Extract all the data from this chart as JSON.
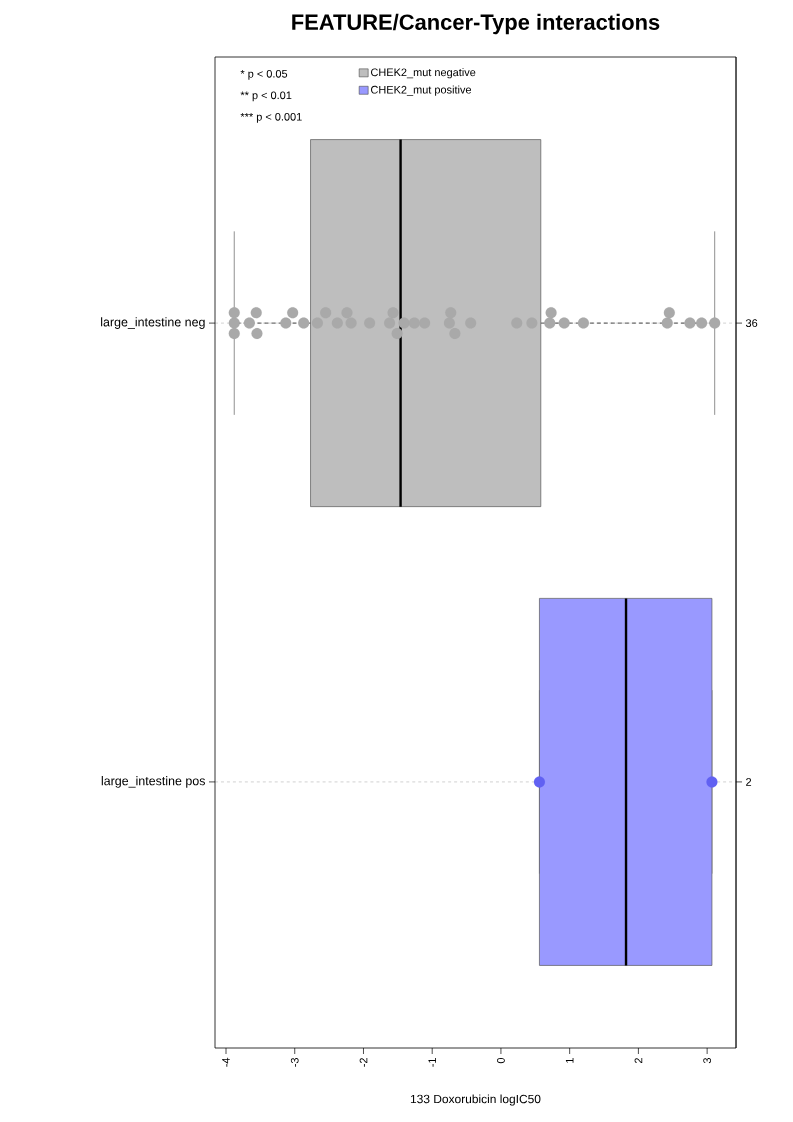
{
  "chart_data": {
    "type": "box",
    "orientation": "horizontal",
    "title": "FEATURE/Cancer-Type interactions",
    "xlabel": "133 Doxorubicin logIC50",
    "categories": [
      "large_intestine neg",
      "large_intestine pos"
    ],
    "y2_categories": [
      "36",
      "2"
    ],
    "xlim": [
      -4.16,
      3.42
    ],
    "xticks": [
      -4,
      -3,
      -2,
      -1,
      0,
      1,
      2,
      3
    ],
    "grid": "y",
    "legend": "top left",
    "annotations": [
      "* p < 0.05",
      "** p < 0.01",
      "*** p < 0.001"
    ],
    "series": [
      {
        "name": "CHEK2_mut negative",
        "color": "#bebebe",
        "boxes": [
          {
            "low": -3.88,
            "q1": -2.77,
            "median": -1.46,
            "q3": 0.58,
            "high": 3.11
          },
          null
        ]
      },
      {
        "name": "CHEK2_mut positive",
        "color": "#9999ff",
        "boxes": [
          null,
          {
            "low": 0.56,
            "q1": 0.56,
            "median": 1.82,
            "q3": 3.07,
            "high": 3.07
          }
        ]
      },
      {
        "type": "scatter",
        "marker": "circle",
        "color": "#a9a9a9",
        "x": [
          "large_intestine neg",
          "large_intestine neg",
          "large_intestine neg",
          "large_intestine neg",
          "large_intestine neg",
          "large_intestine neg",
          "large_intestine neg",
          "large_intestine neg",
          "large_intestine neg",
          "large_intestine neg",
          "large_intestine neg",
          "large_intestine neg",
          "large_intestine neg",
          "large_intestine neg",
          "large_intestine neg",
          "large_intestine neg",
          "large_intestine neg",
          "large_intestine neg",
          "large_intestine neg",
          "large_intestine neg",
          "large_intestine neg",
          "large_intestine neg",
          "large_intestine neg",
          "large_intestine neg",
          "large_intestine neg",
          "large_intestine neg",
          "large_intestine neg",
          "large_intestine neg",
          "large_intestine neg",
          "large_intestine neg",
          "large_intestine neg",
          "large_intestine neg",
          "large_intestine neg",
          "large_intestine neg",
          "large_intestine neg",
          "large_intestine neg"
        ],
        "values": [
          -3.88,
          -3.88,
          -3.88,
          -3.66,
          -3.56,
          -3.55,
          -3.13,
          -3.03,
          -2.87,
          -2.67,
          -2.55,
          -2.38,
          -2.24,
          -2.18,
          -1.91,
          -1.62,
          -1.57,
          -1.51,
          -1.41,
          -1.26,
          -1.11,
          -0.75,
          -0.73,
          -0.67,
          -0.44,
          0.23,
          0.45,
          0.71,
          0.73,
          0.92,
          1.2,
          2.42,
          2.45,
          2.75,
          2.92,
          3.11
        ]
      },
      {
        "type": "scatter",
        "marker": "circle",
        "color": "#6161f2",
        "x": [
          "large_intestine pos",
          "large_intestine pos"
        ],
        "values": [
          0.56,
          3.07
        ]
      }
    ]
  }
}
